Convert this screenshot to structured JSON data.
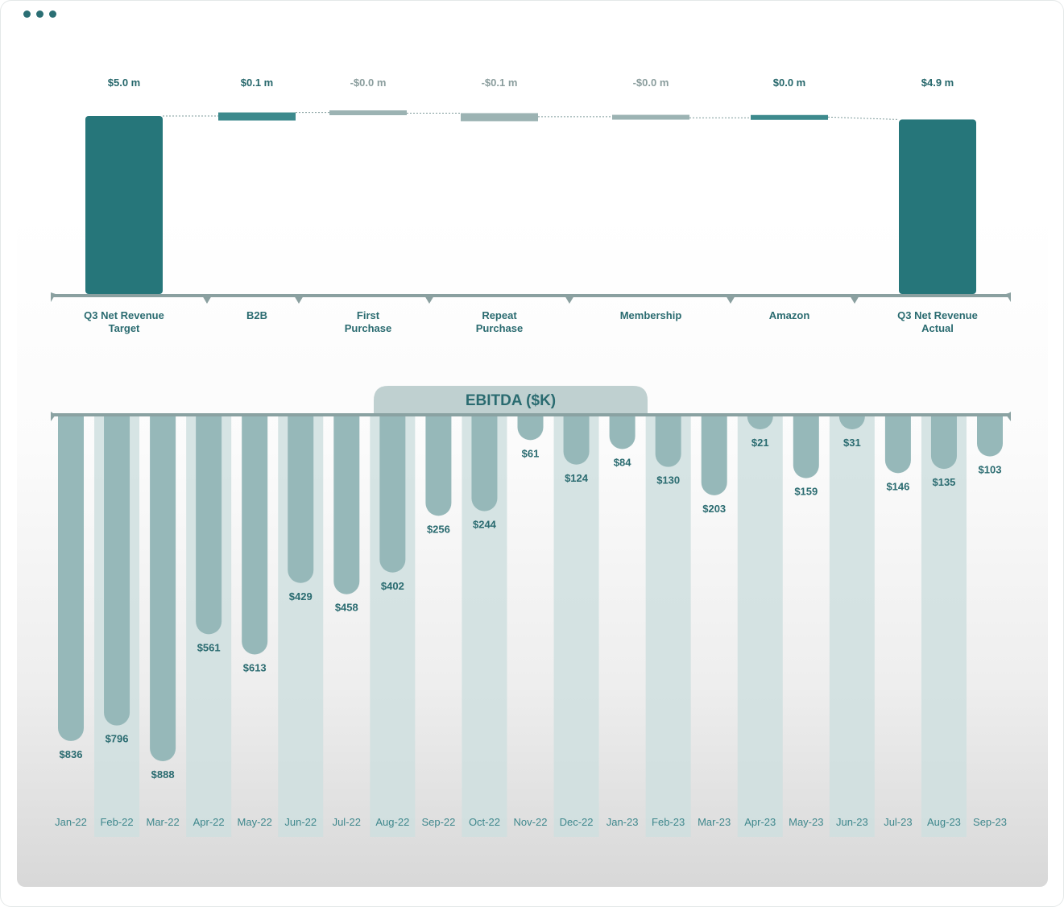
{
  "window": {
    "menu_icon": "ellipsis-icon"
  },
  "chart_data": [
    {
      "type": "waterfall",
      "title": "",
      "unit": "$ m",
      "categories": [
        "Q3 Net Revenue Target",
        "B2B",
        "First Purchase",
        "Repeat Purchase",
        "Membership",
        "Amazon",
        "Q3 Net Revenue Actual"
      ],
      "category_lines": [
        [
          "Q3 Net Revenue",
          "Target"
        ],
        [
          "B2B"
        ],
        [
          "First",
          "Purchase"
        ],
        [
          "Repeat",
          "Purchase"
        ],
        [
          "Membership"
        ],
        [
          "Amazon"
        ],
        [
          "Q3 Net Revenue",
          "Actual"
        ]
      ],
      "values": [
        5.0,
        0.1,
        -0.02,
        -0.1,
        -0.03,
        0.02,
        4.9
      ],
      "labels": [
        "$5.0 m",
        "$0.1 m",
        "-$0.0 m",
        "-$0.1 m",
        "-$0.0 m",
        "$0.0 m",
        "$4.9 m"
      ],
      "kinds": [
        "total",
        "increase",
        "decrease",
        "decrease",
        "decrease",
        "increase",
        "total"
      ],
      "colors": {
        "total": "#26767a",
        "increase": "#3d8a8d",
        "decrease": "#9cb3b3"
      }
    },
    {
      "type": "bar",
      "title": "EBITDA ($K)",
      "orientation": "downward",
      "categories": [
        "Jan-22",
        "Feb-22",
        "Mar-22",
        "Apr-22",
        "May-22",
        "Jun-22",
        "Jul-22",
        "Aug-22",
        "Sep-22",
        "Oct-22",
        "Nov-22",
        "Dec-22",
        "Jan-23",
        "Feb-23",
        "Mar-23",
        "Apr-23",
        "May-23",
        "Jun-23",
        "Jul-23",
        "Aug-23",
        "Sep-23"
      ],
      "values": [
        836,
        796,
        888,
        561,
        613,
        429,
        458,
        402,
        256,
        244,
        61,
        124,
        84,
        130,
        203,
        21,
        159,
        31,
        146,
        135,
        103
      ],
      "labels": [
        "$836",
        "$796",
        "$888",
        "$561",
        "$613",
        "$429",
        "$458",
        "$402",
        "$256",
        "$244",
        "$61",
        "$124",
        "$84",
        "$130",
        "$203",
        "$21",
        "$159",
        "$31",
        "$146",
        "$135",
        "$103"
      ],
      "ylim": [
        0,
        888
      ],
      "colors": {
        "bar": "#96b8b9",
        "band": "#cfdfdf",
        "axis": "#8aa2a2",
        "title_tab": "#bfd0d0"
      }
    }
  ]
}
